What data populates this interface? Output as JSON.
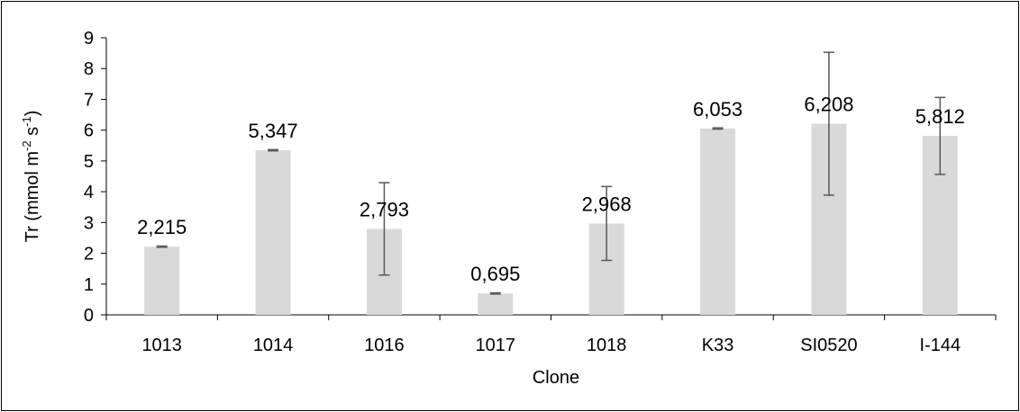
{
  "chart_data": {
    "type": "bar",
    "title": "",
    "xlabel": "Clone",
    "ylabel_main": "Tr (mmol m",
    "ylabel_sup1": "-2",
    "ylabel_mid": " s",
    "ylabel_sup2": "-1",
    "ylabel_end": ")",
    "ylim": [
      0,
      9
    ],
    "yticks": [
      "0",
      "1",
      "2",
      "3",
      "4",
      "5",
      "6",
      "7",
      "8",
      "9"
    ],
    "categories": [
      "1013",
      "1014",
      "1016",
      "1017",
      "1018",
      "K33",
      "SI0520",
      "I-144"
    ],
    "values": [
      2.215,
      5.347,
      2.793,
      0.695,
      2.968,
      6.053,
      6.208,
      5.812
    ],
    "value_labels": [
      "2,215",
      "5,347",
      "2,793",
      "0,695",
      "2,968",
      "6,053",
      "6,208",
      "5,812"
    ],
    "error": [
      0.02,
      0.02,
      1.5,
      0.02,
      1.2,
      0.02,
      2.32,
      1.25
    ],
    "bar_color": "#d9d9d9",
    "error_color": "#595959",
    "grid": false,
    "legend": "none"
  }
}
